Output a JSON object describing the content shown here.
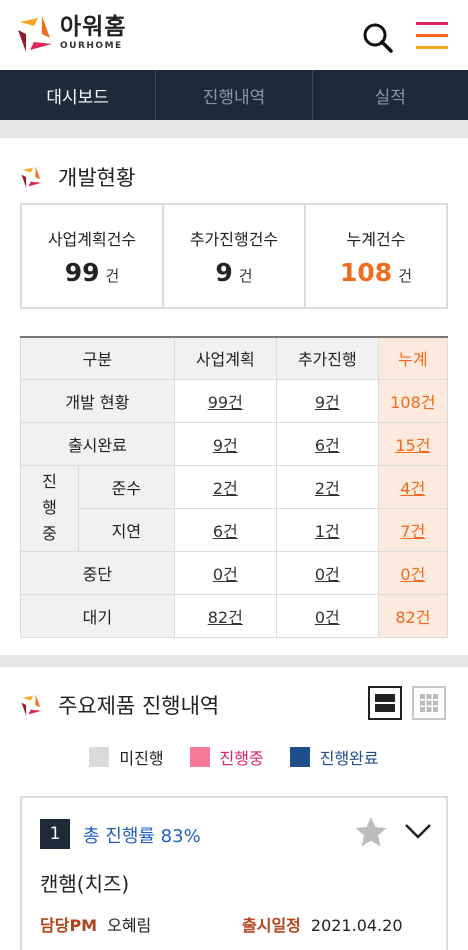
{
  "header": {
    "brand_ko": "아워홈",
    "brand_en": "OURHOME"
  },
  "tabs": [
    {
      "label": "대시보드",
      "active": true
    },
    {
      "label": "진행내역",
      "active": false
    },
    {
      "label": "실적",
      "active": false
    }
  ],
  "development": {
    "title": "개발현황",
    "summary": [
      {
        "label": "사업계획건수",
        "value": "99",
        "unit": "건"
      },
      {
        "label": "추가진행건수",
        "value": "9",
        "unit": "건"
      },
      {
        "label": "누계건수",
        "value": "108",
        "unit": "건"
      }
    ],
    "table": {
      "headers": [
        "구분",
        "사업계획",
        "추가진행",
        "누계"
      ],
      "rows": {
        "dev": {
          "label": "개발 현황",
          "plan": "99건",
          "extra": "9건",
          "total": "108건"
        },
        "released": {
          "label": "출시완료",
          "plan": "9건",
          "extra": "6건",
          "total": "15건"
        },
        "in_progress_label": "진\n행\n중",
        "on_time": {
          "label": "준수",
          "plan": "2건",
          "extra": "2건",
          "total": "4건"
        },
        "delayed": {
          "label": "지연",
          "plan": "6건",
          "extra": "1건",
          "total": "7건"
        },
        "stopped": {
          "label": "중단",
          "plan": "0건",
          "extra": "0건",
          "total": "0건"
        },
        "waiting": {
          "label": "대기",
          "plan": "82건",
          "extra": "0건",
          "total": "82건"
        }
      }
    }
  },
  "products": {
    "title": "주요제품 진행내역",
    "legend": [
      {
        "label": "미진행",
        "color": "#d9d9d9"
      },
      {
        "label": "진행중",
        "color": "#f7799a"
      },
      {
        "label": "진행완료",
        "color": "#1f4e8c"
      }
    ],
    "card": {
      "number": "1",
      "progress": "총 진행률 83%",
      "name": "캔햄(치즈)",
      "pm_label": "담당PM",
      "pm_value": "오혜림",
      "release_label": "출시일정",
      "release_value": "2021.04.20"
    }
  },
  "colors": {
    "navy": "#1e2a3a",
    "accent_orange": "#f26b1d",
    "progress_blue": "#1f5fbf"
  }
}
